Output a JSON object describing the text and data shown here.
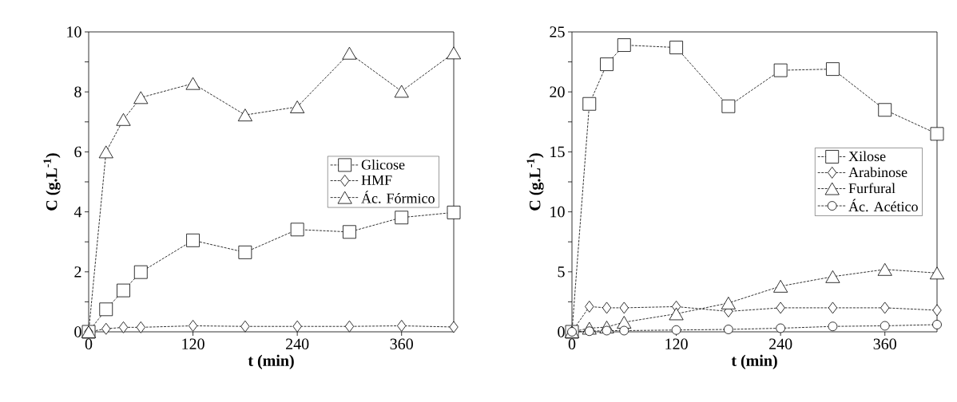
{
  "chart_data": [
    {
      "type": "line",
      "xlabel": "t (min)",
      "ylabel": "C (g.L$^{-1}$)",
      "x": [
        0,
        20,
        40,
        60,
        120,
        180,
        240,
        300,
        360,
        420
      ],
      "xlim": [
        0,
        420
      ],
      "xticks": [
        0,
        120,
        240,
        360
      ],
      "ylim": [
        0,
        10
      ],
      "yticks": [
        0,
        {
          "value": 1,
          "label": null
        },
        2,
        {
          "value": 3,
          "label": null
        },
        4,
        {
          "value": 5,
          "label": null
        },
        6,
        {
          "value": 7,
          "label": null
        },
        8,
        {
          "value": 9,
          "label": null
        },
        10
      ],
      "line_style": "dashed",
      "legend": "right",
      "grid": false,
      "series": [
        {
          "name": "Glicose",
          "color": "#000000",
          "marker": "square",
          "values": [
            0,
            0.75,
            1.38,
            1.99,
            3.05,
            2.65,
            3.41,
            3.33,
            3.81,
            3.98
          ]
        },
        {
          "name": "HMF",
          "color": "#000000",
          "marker": "diamond",
          "values": [
            0,
            0.1,
            0.15,
            0.15,
            0.2,
            0.18,
            0.18,
            0.18,
            0.2,
            0.16
          ]
        },
        {
          "name": "Ác. Fórmico",
          "color": "#000000",
          "marker": "triangle",
          "values": [
            0,
            6.0,
            7.08,
            7.81,
            8.28,
            7.23,
            7.5,
            9.29,
            8.02,
            9.3
          ]
        }
      ]
    },
    {
      "type": "line",
      "xlabel": "t (min)",
      "ylabel": "C (g.L$^{-1}$)",
      "x": [
        0,
        20,
        40,
        60,
        120,
        180,
        240,
        300,
        360,
        420
      ],
      "xlim": [
        0,
        420
      ],
      "xticks": [
        0,
        120,
        240,
        360
      ],
      "ylim": [
        0,
        25
      ],
      "yticks": [
        0,
        {
          "value": 2.5,
          "label": null
        },
        5,
        {
          "value": 7.5,
          "label": null
        },
        10,
        {
          "value": 12.5,
          "label": null
        },
        15,
        {
          "value": 17.5,
          "label": null
        },
        20,
        {
          "value": 22.5,
          "label": null
        },
        25
      ],
      "line_style": "dashed",
      "legend": "right",
      "grid": false,
      "series": [
        {
          "name": "Xilose",
          "color": "#000000",
          "marker": "square",
          "values": [
            0,
            19.0,
            22.3,
            23.9,
            23.7,
            18.8,
            21.8,
            21.9,
            18.5,
            16.5
          ]
        },
        {
          "name": "Arabinose",
          "color": "#000000",
          "marker": "diamond",
          "values": [
            0,
            2.1,
            2.0,
            2.0,
            2.1,
            1.7,
            2.0,
            2.0,
            2.0,
            1.8
          ]
        },
        {
          "name": "Furfural",
          "color": "#000000",
          "marker": "triangle",
          "values": [
            0,
            0.3,
            0.4,
            0.8,
            1.5,
            2.4,
            3.8,
            4.6,
            5.2,
            4.9
          ]
        },
        {
          "name": "Ác. Acético",
          "color": "#000000",
          "marker": "circle",
          "values": [
            0,
            0.05,
            0.1,
            0.1,
            0.15,
            0.2,
            0.3,
            0.45,
            0.5,
            0.6
          ]
        }
      ]
    }
  ]
}
